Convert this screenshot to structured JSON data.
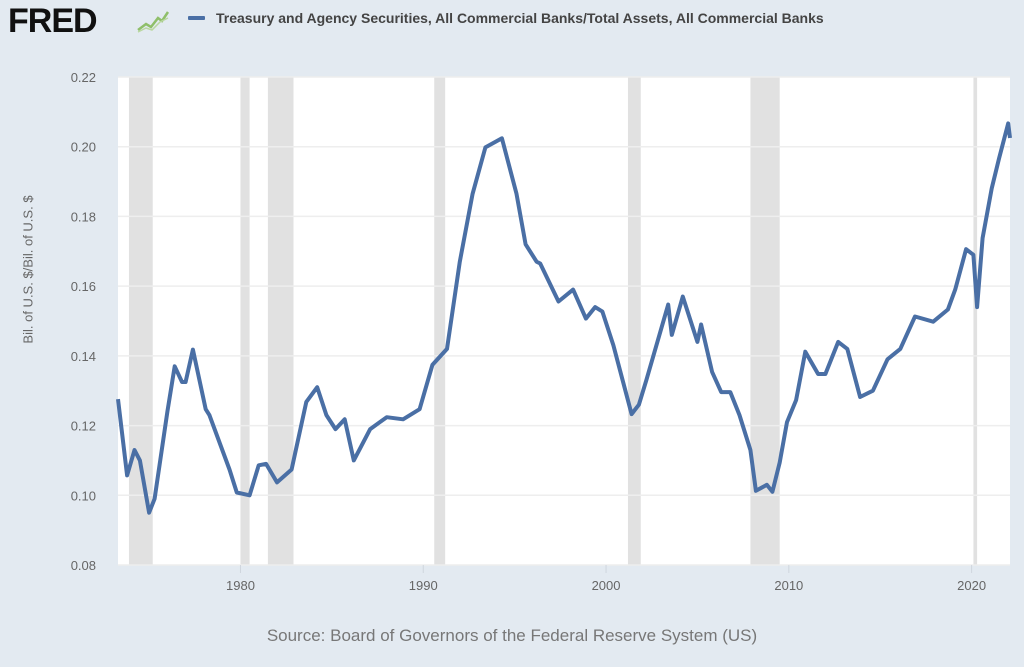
{
  "header": {
    "logo": "FRED",
    "legend_label": "Treasury and Agency Securities, All Commercial Banks/Total Assets, All Commercial Banks"
  },
  "source": "Source: Board of Governors of the Federal Reserve System (US)",
  "colors": {
    "series": "#4a6fa5",
    "recession": "#e1e1e1",
    "background": "#e3eaf1",
    "plot": "#ffffff"
  },
  "chart_data": {
    "type": "line",
    "title": "Treasury and Agency Securities, All Commercial Banks/Total Assets, All Commercial Banks",
    "xlabel": "",
    "ylabel": "Bil. of U.S. $/Bil. of U.S. $",
    "xlim": [
      1973.3,
      2022.1
    ],
    "ylim": [
      0.08,
      0.22
    ],
    "x_ticks": [
      1980,
      1990,
      2000,
      2010,
      2020
    ],
    "y_ticks": [
      "0.08",
      "0.10",
      "0.12",
      "0.14",
      "0.16",
      "0.18",
      "0.20",
      "0.22"
    ],
    "grid": true,
    "legend": "top",
    "recessions": [
      [
        1973.9,
        1975.2
      ],
      [
        1980.0,
        1980.5
      ],
      [
        1981.5,
        1982.9
      ],
      [
        1990.6,
        1991.2
      ],
      [
        2001.2,
        2001.9
      ],
      [
        2007.9,
        2009.5
      ],
      [
        2020.1,
        2020.3
      ]
    ],
    "series": [
      {
        "name": "Treasury and Agency Securities, All Commercial Banks/Total Assets, All Commercial Banks",
        "x": [
          1973.3,
          1973.8,
          1974.2,
          1974.5,
          1975.0,
          1975.3,
          1976.0,
          1976.4,
          1976.8,
          1977.0,
          1977.4,
          1978.1,
          1978.3,
          1979.4,
          1979.8,
          1980.5,
          1981.0,
          1981.4,
          1982.0,
          1982.8,
          1983.6,
          1984.2,
          1984.7,
          1985.2,
          1985.7,
          1986.2,
          1987.1,
          1988.0,
          1988.9,
          1989.8,
          1990.5,
          1991.3,
          1992.0,
          1992.7,
          1993.4,
          1994.3,
          1995.1,
          1995.6,
          1996.2,
          1996.4,
          1997.4,
          1998.2,
          1998.9,
          1999.4,
          1999.8,
          2000.4,
          2001.4,
          2001.8,
          2002.2,
          2003.4,
          2003.6,
          2004.2,
          2005.0,
          2005.2,
          2005.8,
          2006.3,
          2006.8,
          2007.3,
          2007.9,
          2008.2,
          2008.8,
          2009.1,
          2009.5,
          2009.9,
          2010.4,
          2010.9,
          2011.6,
          2012.0,
          2012.7,
          2013.2,
          2013.9,
          2014.6,
          2015.4,
          2016.1,
          2016.9,
          2017.9,
          2018.7,
          2019.1,
          2019.7,
          2020.1,
          2020.3,
          2020.6,
          2021.1,
          2021.5,
          2022.0,
          2022.1
        ],
        "y": [
          0.1276,
          0.1057,
          0.113,
          0.11,
          0.095,
          0.099,
          0.124,
          0.137,
          0.1325,
          0.1325,
          0.1418,
          0.1247,
          0.123,
          0.1074,
          0.1008,
          0.1,
          0.1086,
          0.109,
          0.1037,
          0.1074,
          0.1268,
          0.131,
          0.123,
          0.119,
          0.1218,
          0.11,
          0.119,
          0.1224,
          0.1218,
          0.1247,
          0.1374,
          0.142,
          0.167,
          0.1865,
          0.1998,
          0.2024,
          0.1865,
          0.172,
          0.167,
          0.1665,
          0.1556,
          0.159,
          0.1507,
          0.154,
          0.1527,
          0.143,
          0.1233,
          0.126,
          0.133,
          0.1547,
          0.146,
          0.157,
          0.144,
          0.149,
          0.1354,
          0.1296,
          0.1296,
          0.123,
          0.113,
          0.1013,
          0.103,
          0.101,
          0.1094,
          0.121,
          0.1273,
          0.1412,
          0.1348,
          0.1348,
          0.144,
          0.142,
          0.1282,
          0.13,
          0.139,
          0.142,
          0.1513,
          0.1498,
          0.1533,
          0.159,
          0.1706,
          0.169,
          0.154,
          0.1738,
          0.188,
          0.1966,
          0.2067,
          0.2025
        ]
      }
    ]
  }
}
